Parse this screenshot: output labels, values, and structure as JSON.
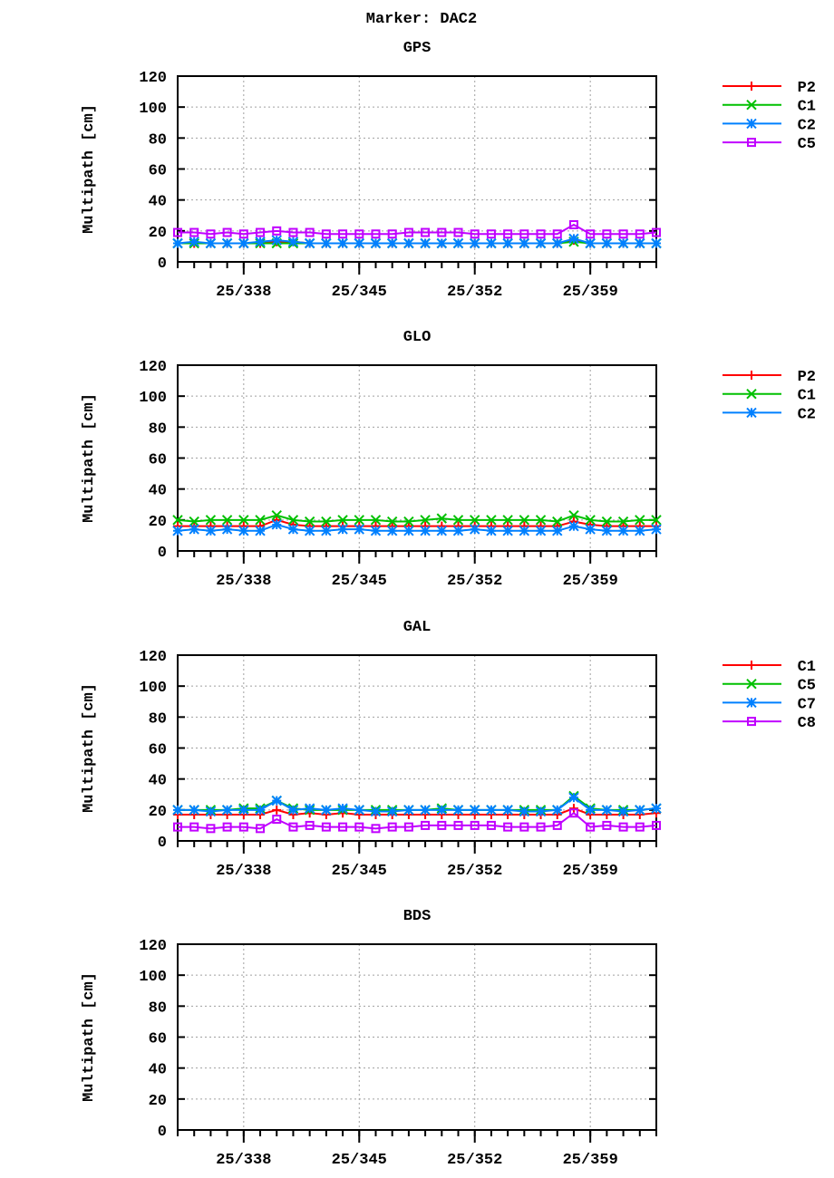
{
  "chart_data": {
    "title": "Marker: DAC2",
    "colors": {
      "series1": "#ff0000",
      "series2": "#00c000",
      "series3": "#0080ff",
      "series4": "#c000ff"
    },
    "markers": [
      "plus",
      "cross",
      "star",
      "square"
    ],
    "panels": [
      {
        "type": "line",
        "title": "GPS",
        "ylabel": "Multipath [cm]",
        "ylim": [
          0,
          120
        ],
        "yticks": [
          "0",
          "20",
          "40",
          "60",
          "80",
          "100",
          "120"
        ],
        "xlim": [
          334,
          363
        ],
        "xticks": [
          338,
          345,
          352,
          359
        ],
        "xtick_labels": [
          "25/338",
          "25/345",
          "25/352",
          "25/359"
        ],
        "grid": true,
        "legend": "outside-right",
        "x": [
          334,
          335,
          336,
          337,
          338,
          339,
          340,
          341,
          342,
          343,
          344,
          345,
          346,
          347,
          348,
          349,
          350,
          351,
          352,
          353,
          354,
          355,
          356,
          357,
          358,
          359,
          360,
          361,
          362,
          363
        ],
        "series": [
          {
            "name": "P2",
            "values": [
              12,
              12,
              12,
              12,
              12,
              12,
              13,
              13,
              12,
              12,
              12,
              12,
              12,
              12,
              12,
              12,
              12,
              12,
              12,
              12,
              12,
              12,
              12,
              12,
              14,
              12,
              12,
              12,
              12,
              12
            ]
          },
          {
            "name": "C1",
            "values": [
              12,
              12,
              12,
              12,
              12,
              12,
              12,
              12,
              12,
              12,
              12,
              12,
              12,
              12,
              12,
              12,
              12,
              12,
              12,
              12,
              12,
              12,
              12,
              12,
              13,
              12,
              12,
              12,
              12,
              12
            ]
          },
          {
            "name": "C2",
            "values": [
              12,
              13,
              12,
              12,
              12,
              13,
              14,
              13,
              12,
              12,
              12,
              12,
              12,
              12,
              12,
              12,
              12,
              12,
              12,
              12,
              12,
              12,
              12,
              12,
              15,
              12,
              12,
              12,
              12,
              12
            ]
          },
          {
            "name": "C5",
            "values": [
              19,
              19,
              18,
              19,
              18,
              19,
              20,
              19,
              19,
              18,
              18,
              18,
              18,
              18,
              19,
              19,
              19,
              19,
              18,
              18,
              18,
              18,
              18,
              18,
              24,
              18,
              18,
              18,
              18,
              19
            ]
          }
        ]
      },
      {
        "type": "line",
        "title": "GLO",
        "ylabel": "Multipath [cm]",
        "ylim": [
          0,
          120
        ],
        "yticks": [
          "0",
          "20",
          "40",
          "60",
          "80",
          "100",
          "120"
        ],
        "xlim": [
          334,
          363
        ],
        "xticks": [
          338,
          345,
          352,
          359
        ],
        "xtick_labels": [
          "25/338",
          "25/345",
          "25/352",
          "25/359"
        ],
        "grid": true,
        "legend": "outside-right",
        "x": [
          334,
          335,
          336,
          337,
          338,
          339,
          340,
          341,
          342,
          343,
          344,
          345,
          346,
          347,
          348,
          349,
          350,
          351,
          352,
          353,
          354,
          355,
          356,
          357,
          358,
          359,
          360,
          361,
          362,
          363
        ],
        "series": [
          {
            "name": "P2",
            "values": [
              16,
              16,
              16,
              16,
              16,
              16,
              20,
              17,
              16,
              16,
              16,
              16,
              16,
              16,
              16,
              16,
              16,
              16,
              16,
              16,
              16,
              16,
              16,
              16,
              19,
              17,
              16,
              16,
              16,
              16
            ]
          },
          {
            "name": "C1",
            "values": [
              20,
              19,
              20,
              20,
              20,
              20,
              23,
              20,
              19,
              19,
              20,
              20,
              20,
              19,
              19,
              20,
              21,
              20,
              20,
              20,
              20,
              20,
              20,
              19,
              23,
              20,
              19,
              19,
              20,
              20
            ]
          },
          {
            "name": "C2",
            "values": [
              13,
              14,
              13,
              14,
              13,
              13,
              17,
              14,
              13,
              13,
              14,
              14,
              13,
              13,
              13,
              13,
              13,
              13,
              14,
              13,
              13,
              13,
              13,
              13,
              16,
              14,
              13,
              13,
              13,
              14
            ]
          }
        ]
      },
      {
        "type": "line",
        "title": "GAL",
        "ylabel": "Multipath [cm]",
        "ylim": [
          0,
          120
        ],
        "yticks": [
          "0",
          "20",
          "40",
          "60",
          "80",
          "100",
          "120"
        ],
        "xlim": [
          334,
          363
        ],
        "xticks": [
          338,
          345,
          352,
          359
        ],
        "xtick_labels": [
          "25/338",
          "25/345",
          "25/352",
          "25/359"
        ],
        "grid": true,
        "legend": "outside-right",
        "x": [
          334,
          335,
          336,
          337,
          338,
          339,
          340,
          341,
          342,
          343,
          344,
          345,
          346,
          347,
          348,
          349,
          350,
          351,
          352,
          353,
          354,
          355,
          356,
          357,
          358,
          359,
          360,
          361,
          362,
          363
        ],
        "series": [
          {
            "name": "C1",
            "values": [
              17,
              17,
              17,
              17,
              17,
              17,
              20,
              17,
              18,
              17,
              18,
              17,
              17,
              17,
              17,
              17,
              17,
              17,
              17,
              17,
              17,
              17,
              17,
              17,
              21,
              17,
              17,
              17,
              17,
              18
            ]
          },
          {
            "name": "C5",
            "values": [
              20,
              20,
              20,
              20,
              21,
              21,
              26,
              21,
              20,
              20,
              20,
              20,
              20,
              20,
              20,
              20,
              21,
              20,
              20,
              20,
              20,
              20,
              20,
              20,
              29,
              21,
              20,
              20,
              20,
              21
            ]
          },
          {
            "name": "C7",
            "values": [
              20,
              20,
              19,
              20,
              20,
              20,
              26,
              20,
              21,
              20,
              21,
              20,
              19,
              19,
              20,
              20,
              20,
              20,
              20,
              20,
              20,
              19,
              19,
              20,
              28,
              20,
              20,
              19,
              20,
              21
            ]
          },
          {
            "name": "C8",
            "values": [
              9,
              9,
              8,
              9,
              9,
              8,
              14,
              9,
              10,
              9,
              9,
              9,
              8,
              9,
              9,
              10,
              10,
              10,
              10,
              10,
              9,
              9,
              9,
              10,
              18,
              9,
              10,
              9,
              9,
              10
            ]
          }
        ]
      },
      {
        "type": "line",
        "title": "BDS",
        "ylabel": "Multipath [cm]",
        "ylim": [
          0,
          120
        ],
        "yticks": [
          "0",
          "20",
          "40",
          "60",
          "80",
          "100",
          "120"
        ],
        "xlim": [
          334,
          363
        ],
        "xticks": [
          338,
          345,
          352,
          359
        ],
        "xtick_labels": [
          "25/338",
          "25/345",
          "25/352",
          "25/359"
        ],
        "grid": true,
        "x": [],
        "series": []
      }
    ]
  }
}
